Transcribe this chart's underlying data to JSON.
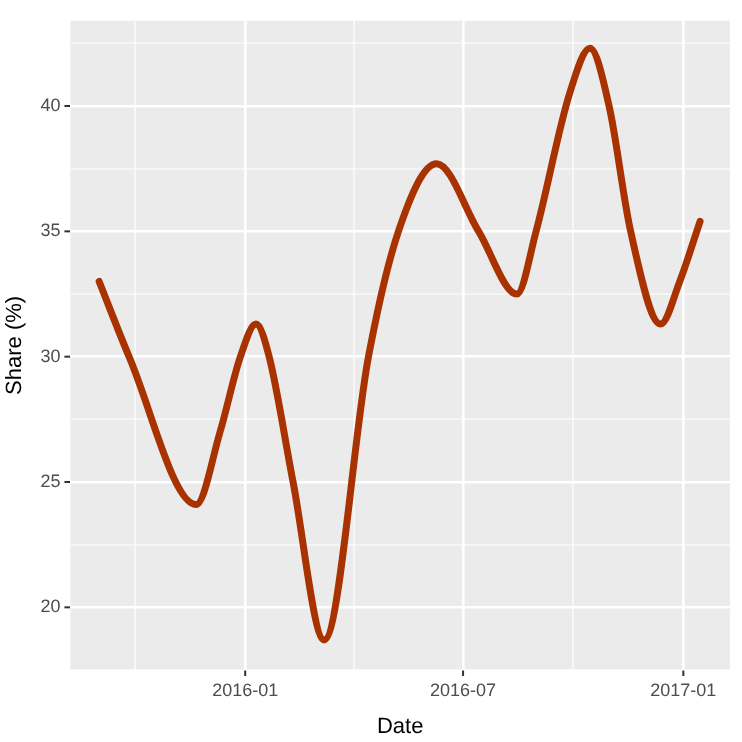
{
  "chart_data": {
    "type": "line",
    "xlabel": "Date",
    "ylabel": "Share (%)",
    "x": [
      "2015-09-01",
      "2015-09-26",
      "2015-11-21",
      "2015-12-11",
      "2015-12-28",
      "2016-01-10",
      "2016-01-21",
      "2016-02-10",
      "2016-03-07",
      "2016-04-13",
      "2016-05-08",
      "2016-06-09",
      "2016-07-14",
      "2016-08-15",
      "2016-08-31",
      "2016-09-28",
      "2016-10-15",
      "2016-10-31",
      "2016-11-18",
      "2016-12-13",
      "2016-12-29",
      "2017-01-15"
    ],
    "series": [
      {
        "color": "#a83200",
        "values": [
          33.0,
          30.0,
          24.1,
          27.0,
          30.0,
          31.3,
          30.0,
          25.0,
          18.7,
          30.0,
          35.0,
          37.7,
          35.0,
          32.5,
          35.0,
          40.5,
          42.3,
          40.0,
          35.0,
          31.3,
          33.0,
          35.4
        ]
      }
    ],
    "xlim": [
      "2015-08-08",
      "2017-02-09"
    ],
    "xticks": [
      {
        "value": "2015-10",
        "label": null
      },
      {
        "value": "2016-01",
        "label": "2016-01"
      },
      {
        "value": "2016-04",
        "label": null
      },
      {
        "value": "2016-07",
        "label": "2016-07"
      },
      {
        "value": "2016-10",
        "label": null
      },
      {
        "value": "2017-01",
        "label": "2017-01"
      }
    ],
    "ylim": [
      17.5,
      43.4
    ],
    "yticks": [
      {
        "value": 17.5,
        "label": null
      },
      20,
      {
        "value": 22.5,
        "label": null
      },
      25,
      {
        "value": 27.5,
        "label": null
      },
      30,
      {
        "value": 32.5,
        "label": null
      },
      35,
      {
        "value": 37.5,
        "label": null
      },
      40,
      {
        "value": 42.5,
        "label": null
      }
    ],
    "grid": true,
    "marker": "none",
    "line_style": "solid"
  }
}
